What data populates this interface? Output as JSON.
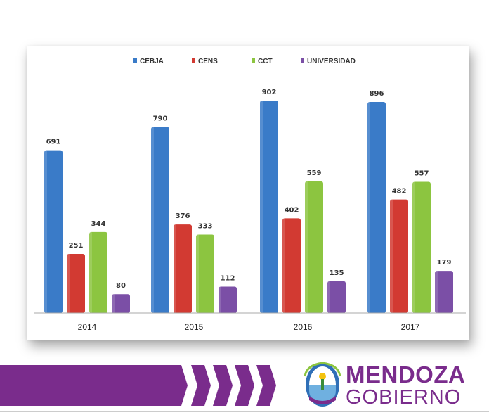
{
  "chart_data": {
    "type": "bar",
    "categories": [
      "2014",
      "2015",
      "2016",
      "2017"
    ],
    "series": [
      {
        "name": "CEBJA",
        "values": [
          691,
          790,
          902,
          896
        ],
        "color": "#3a7bc8"
      },
      {
        "name": "CENS",
        "values": [
          251,
          376,
          402,
          482
        ],
        "color": "#d23a32"
      },
      {
        "name": "CCT",
        "values": [
          344,
          333,
          559,
          557
        ],
        "color": "#8cc540"
      },
      {
        "name": "UNIVERSIDAD",
        "values": [
          80,
          112,
          135,
          179
        ],
        "color": "#7b4fa6"
      }
    ],
    "legend_position": "top",
    "grid": false
  },
  "branding": {
    "title": "MENDOZA",
    "subtitle": "GOBIERNO",
    "color": "#7a2c8c",
    "icon": "mendoza-shield-logo"
  }
}
